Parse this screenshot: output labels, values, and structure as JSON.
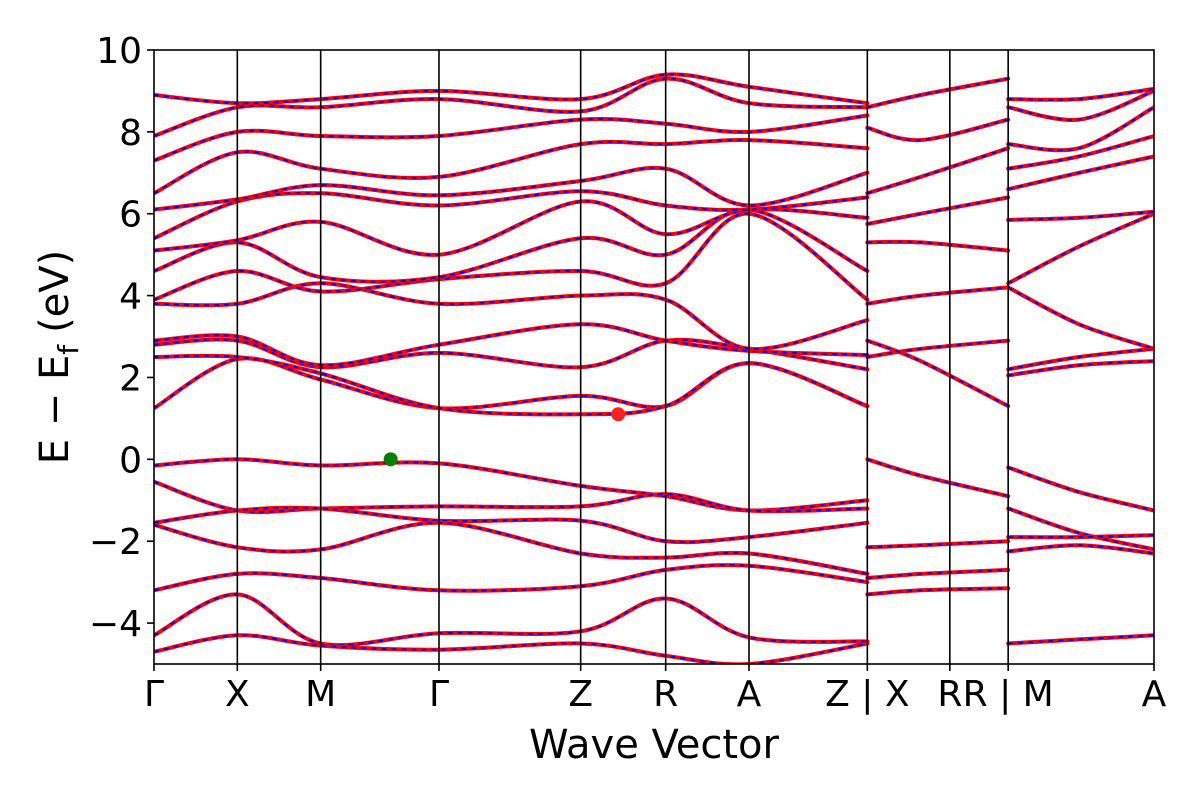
{
  "chart_data": {
    "type": "line",
    "title": "",
    "xlabel": "Wave Vector",
    "ylabel": {
      "main": "E − E",
      "subscript": "f",
      "unit": "(eV)"
    },
    "ylim": [
      -5,
      10
    ],
    "yticks": [
      -4,
      -2,
      0,
      2,
      4,
      6,
      8,
      10
    ],
    "ytick_labels": [
      "−4",
      "−2",
      "0",
      "2",
      "4",
      "6",
      "8",
      "10"
    ],
    "x_range": [
      0,
      12
    ],
    "kpath_ticks": [
      {
        "x": 0,
        "label": "Γ"
      },
      {
        "x": 1,
        "label": "X"
      },
      {
        "x": 2,
        "label": "M"
      },
      {
        "x": 3.42,
        "label": "Γ"
      },
      {
        "x": 5.12,
        "label": "Z"
      },
      {
        "x": 6.14,
        "label": "R"
      },
      {
        "x": 7.14,
        "label": "A"
      },
      {
        "x": 8.56,
        "label": "Z | X"
      },
      {
        "x": 9.55,
        "label": "R"
      },
      {
        "x": 10.25,
        "label": "R | M"
      },
      {
        "x": 12,
        "label": "A"
      }
    ],
    "grid": false,
    "legend": "none",
    "colors": {
      "band_solid": "#ff0000",
      "band_dashed": "#0000ff",
      "vbm_marker": "#008000",
      "cbm_marker": "#ff0000"
    },
    "markers": [
      {
        "name": "VBM",
        "x": 2.84,
        "y": 0.0,
        "color": "#008000"
      },
      {
        "name": "CBM",
        "x": 5.57,
        "y": 1.1,
        "color": "#ff2020"
      }
    ],
    "segments": [
      {
        "name": "Γ-X-M-Γ-Z-R-A-Z",
        "x_start": 0,
        "x_end": 8.56
      },
      {
        "name": "X-R",
        "x_start": 8.56,
        "x_end": 10.25
      },
      {
        "name": "M-A",
        "x_start": 10.25,
        "x_end": 12
      }
    ],
    "series": [
      {
        "name": "",
        "segment": 0,
        "x": [
          0,
          1,
          2,
          3.42,
          5.12,
          6.14,
          7.14,
          8.56
        ],
        "y": [
          -0.15,
          0.0,
          -0.15,
          -0.1,
          -0.65,
          -0.9,
          -1.25,
          -1.0
        ]
      },
      {
        "name": "",
        "segment": 0,
        "x": [
          0,
          1,
          2,
          3.42,
          5.12,
          6.14,
          7.14,
          8.56
        ],
        "y": [
          -0.55,
          -1.25,
          -1.2,
          -1.15,
          -1.15,
          -0.85,
          -1.25,
          -1.2
        ]
      },
      {
        "name": "",
        "segment": 0,
        "x": [
          0,
          1,
          2,
          3.42,
          5.12,
          6.14,
          7.14,
          8.56
        ],
        "y": [
          -1.55,
          -1.25,
          -1.2,
          -1.5,
          -1.5,
          -2.0,
          -1.9,
          -1.55
        ]
      },
      {
        "name": "",
        "segment": 0,
        "x": [
          0,
          1,
          2,
          3.42,
          5.12,
          6.14,
          7.14,
          8.56
        ],
        "y": [
          -1.6,
          -2.15,
          -2.2,
          -1.55,
          -2.3,
          -2.4,
          -2.3,
          -2.8
        ]
      },
      {
        "name": "",
        "segment": 0,
        "x": [
          0,
          1,
          2,
          3.42,
          5.12,
          6.14,
          7.14,
          8.56
        ],
        "y": [
          -3.2,
          -2.8,
          -2.9,
          -3.2,
          -3.1,
          -2.7,
          -2.6,
          -3.0
        ]
      },
      {
        "name": "",
        "segment": 0,
        "x": [
          0,
          1,
          2,
          3.42,
          5.12,
          6.14,
          7.14,
          8.56
        ],
        "y": [
          -4.3,
          -3.3,
          -4.5,
          -4.25,
          -4.2,
          -3.4,
          -4.35,
          -4.45
        ]
      },
      {
        "name": "",
        "segment": 0,
        "x": [
          0,
          1,
          2,
          3.42,
          5.12,
          6.14,
          7.14,
          8.56
        ],
        "y": [
          -4.7,
          -4.3,
          -4.55,
          -4.65,
          -4.5,
          -4.8,
          -5.0,
          -4.5
        ]
      },
      {
        "name": "",
        "segment": 0,
        "x": [
          0,
          1,
          2,
          3.42,
          5.12,
          6.14,
          7.14,
          8.56
        ],
        "y": [
          1.25,
          2.45,
          1.95,
          1.25,
          1.55,
          1.3,
          2.35,
          1.3
        ]
      },
      {
        "name": "",
        "segment": 0,
        "x": [
          0,
          1,
          2,
          3.42,
          5.12,
          6.14,
          7.14,
          8.56
        ],
        "y": [
          2.5,
          2.5,
          2.1,
          1.25,
          1.1,
          1.3,
          2.35,
          1.3
        ]
      },
      {
        "name": "",
        "segment": 0,
        "x": [
          0,
          1,
          2,
          3.42,
          5.12,
          6.14,
          7.14,
          8.56
        ],
        "y": [
          2.8,
          2.9,
          2.25,
          2.6,
          2.25,
          2.9,
          2.7,
          2.2
        ]
      },
      {
        "name": "",
        "segment": 0,
        "x": [
          0,
          1,
          2,
          3.42,
          5.12,
          6.14,
          7.14,
          8.56
        ],
        "y": [
          2.9,
          3.0,
          2.3,
          2.8,
          3.3,
          2.9,
          2.65,
          2.55
        ]
      },
      {
        "name": "",
        "segment": 0,
        "x": [
          0,
          1,
          2,
          3.42,
          5.12,
          6.14,
          7.14,
          8.56
        ],
        "y": [
          3.8,
          3.8,
          4.3,
          3.8,
          4.0,
          3.9,
          2.7,
          3.4
        ]
      },
      {
        "name": "",
        "segment": 0,
        "x": [
          0,
          1,
          2,
          3.42,
          5.12,
          6.14,
          7.14,
          8.56
        ],
        "y": [
          3.9,
          4.6,
          4.1,
          4.4,
          4.6,
          4.3,
          6.0,
          3.9
        ]
      },
      {
        "name": "",
        "segment": 0,
        "x": [
          0,
          1,
          2,
          3.42,
          5.12,
          6.14,
          7.14,
          8.56
        ],
        "y": [
          4.6,
          5.3,
          4.45,
          4.45,
          5.4,
          5.0,
          6.1,
          4.6
        ]
      },
      {
        "name": "",
        "segment": 0,
        "x": [
          0,
          1,
          2,
          3.42,
          5.12,
          6.14,
          7.14,
          8.56
        ],
        "y": [
          5.1,
          5.35,
          5.8,
          5.0,
          6.3,
          5.5,
          6.1,
          5.9
        ]
      },
      {
        "name": "",
        "segment": 0,
        "x": [
          0,
          1,
          2,
          3.42,
          5.12,
          6.14,
          7.14,
          8.56
        ],
        "y": [
          5.4,
          6.3,
          6.5,
          6.2,
          6.55,
          6.2,
          6.1,
          6.4
        ]
      },
      {
        "name": "",
        "segment": 0,
        "x": [
          0,
          1,
          2,
          3.42,
          5.12,
          6.14,
          7.14,
          8.56
        ],
        "y": [
          6.1,
          6.35,
          6.7,
          6.45,
          6.8,
          7.1,
          6.2,
          7.0
        ]
      },
      {
        "name": "",
        "segment": 0,
        "x": [
          0,
          1,
          2,
          3.42,
          5.12,
          6.14,
          7.14,
          8.56
        ],
        "y": [
          6.5,
          7.5,
          7.1,
          6.9,
          7.7,
          7.7,
          7.8,
          7.6
        ]
      },
      {
        "name": "",
        "segment": 0,
        "x": [
          0,
          1,
          2,
          3.42,
          5.12,
          6.14,
          7.14,
          8.56
        ],
        "y": [
          7.3,
          8.0,
          7.9,
          7.9,
          8.3,
          8.2,
          8.0,
          8.4
        ]
      },
      {
        "name": "",
        "segment": 0,
        "x": [
          0,
          1,
          2,
          3.42,
          5.12,
          6.14,
          7.14,
          8.56
        ],
        "y": [
          7.9,
          8.6,
          8.6,
          8.8,
          8.5,
          9.3,
          8.7,
          8.6
        ]
      },
      {
        "name": "",
        "segment": 0,
        "x": [
          0,
          1,
          2,
          3.42,
          5.12,
          6.14,
          7.14,
          8.56
        ],
        "y": [
          8.9,
          8.7,
          8.8,
          9.0,
          8.8,
          9.4,
          9.1,
          8.7
        ]
      },
      {
        "name": "",
        "segment": 1,
        "x": [
          8.56,
          9.2,
          10.25
        ],
        "y": [
          0.0,
          -0.4,
          -0.9
        ]
      },
      {
        "name": "",
        "segment": 1,
        "x": [
          8.56,
          9.2,
          10.25
        ],
        "y": [
          -2.15,
          -2.1,
          -2.0
        ]
      },
      {
        "name": "",
        "segment": 1,
        "x": [
          8.56,
          9.2,
          10.25
        ],
        "y": [
          -2.9,
          -2.8,
          -2.7
        ]
      },
      {
        "name": "",
        "segment": 1,
        "x": [
          8.56,
          9.2,
          10.25
        ],
        "y": [
          -3.3,
          -3.2,
          -3.15
        ]
      },
      {
        "name": "",
        "segment": 1,
        "x": [
          8.56,
          9.2,
          10.25
        ],
        "y": [
          2.5,
          2.7,
          2.9
        ]
      },
      {
        "name": "",
        "segment": 1,
        "x": [
          8.56,
          9.2,
          10.25
        ],
        "y": [
          2.9,
          2.4,
          1.3
        ]
      },
      {
        "name": "",
        "segment": 1,
        "x": [
          8.56,
          9.2,
          10.25
        ],
        "y": [
          3.8,
          4.0,
          4.2
        ]
      },
      {
        "name": "",
        "segment": 1,
        "x": [
          8.56,
          9.2,
          10.25
        ],
        "y": [
          5.3,
          5.3,
          5.1
        ]
      },
      {
        "name": "",
        "segment": 1,
        "x": [
          8.56,
          9.2,
          10.25
        ],
        "y": [
          5.75,
          6.0,
          6.4
        ]
      },
      {
        "name": "",
        "segment": 1,
        "x": [
          8.56,
          9.2,
          10.25
        ],
        "y": [
          6.5,
          6.9,
          7.6
        ]
      },
      {
        "name": "",
        "segment": 1,
        "x": [
          8.56,
          9.2,
          10.25
        ],
        "y": [
          8.1,
          7.8,
          8.3
        ]
      },
      {
        "name": "",
        "segment": 1,
        "x": [
          8.56,
          9.2,
          10.25
        ],
        "y": [
          8.6,
          8.9,
          9.3
        ]
      },
      {
        "name": "",
        "segment": 2,
        "x": [
          10.25,
          11.1,
          12
        ],
        "y": [
          -0.2,
          -0.8,
          -1.25
        ]
      },
      {
        "name": "",
        "segment": 2,
        "x": [
          10.25,
          11.1,
          12
        ],
        "y": [
          -1.2,
          -1.8,
          -2.2
        ]
      },
      {
        "name": "",
        "segment": 2,
        "x": [
          10.25,
          11.1,
          12
        ],
        "y": [
          -1.9,
          -1.9,
          -1.85
        ]
      },
      {
        "name": "",
        "segment": 2,
        "x": [
          10.25,
          11.1,
          12
        ],
        "y": [
          -2.25,
          -2.1,
          -2.3
        ]
      },
      {
        "name": "",
        "segment": 2,
        "x": [
          10.25,
          11.1,
          12
        ],
        "y": [
          -4.5,
          -4.4,
          -4.3
        ]
      },
      {
        "name": "",
        "segment": 2,
        "x": [
          10.25,
          11.1,
          12
        ],
        "y": [
          2.05,
          2.3,
          2.4
        ]
      },
      {
        "name": "",
        "segment": 2,
        "x": [
          10.25,
          11.1,
          12
        ],
        "y": [
          2.2,
          2.5,
          2.7
        ]
      },
      {
        "name": "",
        "segment": 2,
        "x": [
          10.25,
          11.1,
          12
        ],
        "y": [
          4.2,
          3.3,
          2.7
        ]
      },
      {
        "name": "",
        "segment": 2,
        "x": [
          10.25,
          11.1,
          12
        ],
        "y": [
          4.3,
          5.2,
          6.0
        ]
      },
      {
        "name": "",
        "segment": 2,
        "x": [
          10.25,
          11.1,
          12
        ],
        "y": [
          5.85,
          5.9,
          6.05
        ]
      },
      {
        "name": "",
        "segment": 2,
        "x": [
          10.25,
          11.1,
          12
        ],
        "y": [
          6.6,
          7.0,
          7.4
        ]
      },
      {
        "name": "",
        "segment": 2,
        "x": [
          10.25,
          11.1,
          12
        ],
        "y": [
          7.1,
          7.4,
          7.9
        ]
      },
      {
        "name": "",
        "segment": 2,
        "x": [
          10.25,
          11.1,
          12
        ],
        "y": [
          7.7,
          7.6,
          8.6
        ]
      },
      {
        "name": "",
        "segment": 2,
        "x": [
          10.25,
          11.1,
          12
        ],
        "y": [
          8.6,
          8.3,
          9.0
        ]
      },
      {
        "name": "",
        "segment": 2,
        "x": [
          10.25,
          11.1,
          12
        ],
        "y": [
          8.8,
          8.8,
          9.05
        ]
      }
    ]
  }
}
